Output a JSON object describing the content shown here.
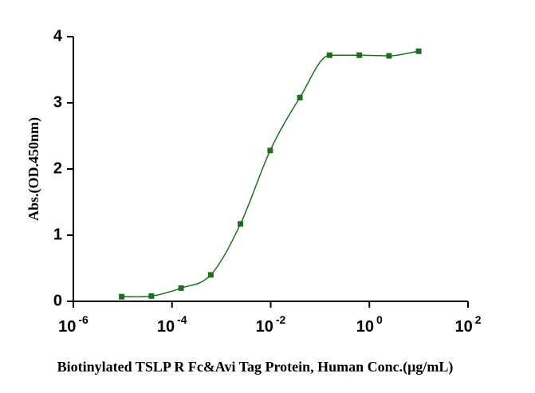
{
  "chart_data": {
    "type": "scatter",
    "x_label": "Biotinylated TSLP R Fc&Avi Tag Protein, Human Conc.(μg/mL)",
    "y_label": "Abs.(OD.450nm)",
    "x": [
      9.53674316406e-06,
      3.81469726563e-05,
      0.000152587890625,
      0.0006103515625,
      0.00244140625,
      0.009765625,
      0.0390625,
      0.15625,
      0.625,
      2.5,
      10
    ],
    "values": [
      0.07,
      0.08,
      0.2,
      0.4,
      1.17,
      2.28,
      3.08,
      3.72,
      3.72,
      3.71,
      3.78
    ],
    "color": "#1f6e1f",
    "x_scale": "log",
    "xlim": [
      1e-06,
      100
    ],
    "xticks": [
      {
        "value": 1e-06,
        "label": "10",
        "exponent": "-6"
      },
      {
        "value": 0.0001,
        "label": "10",
        "exponent": "-4"
      },
      {
        "value": 0.01,
        "label": "10",
        "exponent": "-2"
      },
      {
        "value": 1,
        "label": "10",
        "exponent": "0"
      },
      {
        "value": 100,
        "label": "10",
        "exponent": "2"
      }
    ],
    "ylim": [
      0,
      4
    ],
    "yticks": [
      0,
      1,
      2,
      3,
      4
    ]
  }
}
